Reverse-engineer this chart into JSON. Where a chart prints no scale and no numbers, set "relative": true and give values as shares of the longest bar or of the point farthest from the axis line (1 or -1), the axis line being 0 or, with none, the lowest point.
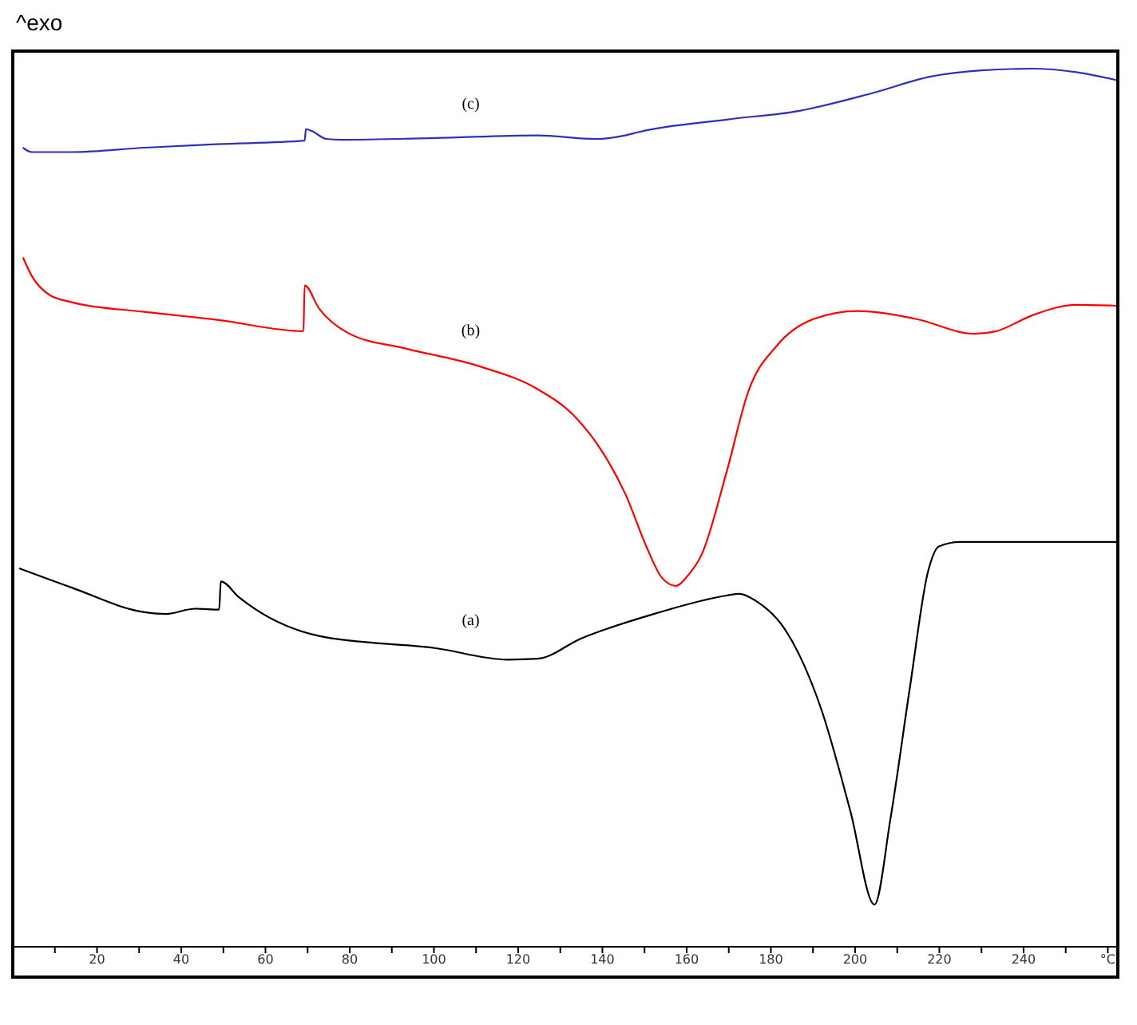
{
  "chart_data": {
    "type": "line",
    "relative": true,
    "ylabel": "^exo",
    "marker": "none",
    "line_style": "solid",
    "xlim": [
      0,
      262
    ],
    "xticks": [
      {
        "value": 10,
        "label": null
      },
      20,
      {
        "value": 30,
        "label": null
      },
      40,
      {
        "value": 50,
        "label": null
      },
      60,
      {
        "value": 70,
        "label": null
      },
      80,
      {
        "value": 90,
        "label": null
      },
      100,
      {
        "value": 110,
        "label": null
      },
      120,
      {
        "value": 130,
        "label": null
      },
      140,
      {
        "value": 150,
        "label": null
      },
      160,
      {
        "value": 170,
        "label": null
      },
      180,
      {
        "value": 190,
        "label": null
      },
      200,
      {
        "value": 210,
        "label": null
      },
      220,
      {
        "value": 230,
        "label": null
      },
      240,
      {
        "value": 250,
        "label": null
      },
      {
        "value": 260,
        "label": "°C"
      }
    ],
    "series": [
      {
        "name": "(a)",
        "color": "#000000",
        "x": [
          1.5,
          14,
          31.3,
          36.4,
          43.3,
          49,
          49.4,
          53.7,
          72.7,
          100.4,
          117.6,
          124.6,
          134.9,
          152.2,
          169.5,
          172.5,
          176.4,
          183.4,
          192,
          198.9,
          204.6,
          208.4,
          213,
          217.3,
          219.9,
          225,
          262
        ],
        "values": [
          0.431,
          0.409,
          0.381,
          0.379,
          0.385,
          0.384,
          0.416,
          0.398,
          0.354,
          0.34,
          0.327,
          0.328,
          0.351,
          0.379,
          0.4,
          0.402,
          0.394,
          0.361,
          0.27,
          0.154,
          0.048,
          0.146,
          0.295,
          0.427,
          0.456,
          0.461,
          0.461
        ]
      },
      {
        "name": "(b)",
        "color": "#ff0000",
        "x": [
          2.4,
          4.5,
          8.8,
          14,
          31.3,
          48.5,
          69,
          69.3,
          72.7,
          79.6,
          93.5,
          110.8,
          124.6,
          133.2,
          140.2,
          145.4,
          150.5,
          154,
          157.4,
          160.5,
          163.5,
          169.5,
          174.6,
          181.5,
          190.2,
          200.6,
          214.4,
          228.3,
          233.5,
          242,
          252.5,
          262
        ],
        "values": [
          0.785,
          0.764,
          0.742,
          0.734,
          0.723,
          0.714,
          0.701,
          0.753,
          0.727,
          0.699,
          0.681,
          0.661,
          0.635,
          0.605,
          0.562,
          0.516,
          0.455,
          0.421,
          0.411,
          0.424,
          0.446,
          0.541,
          0.632,
          0.685,
          0.715,
          0.724,
          0.715,
          0.698,
          0.701,
          0.719,
          0.731,
          0.73
        ]
      },
      {
        "name": "(c)",
        "color": "#2f2fbf",
        "x": [
          2.4,
          4.5,
          14,
          31.3,
          48.5,
          69.3,
          69.6,
          71,
          74.4,
          77.9,
          100.4,
          124.5,
          138.5,
          145.4,
          148.8,
          169.5,
          186.8,
          204,
          218,
          230,
          242,
          252.5,
          262
        ],
        "values": [
          0.91,
          0.905,
          0.905,
          0.91,
          0.914,
          0.918,
          0.931,
          0.929,
          0.92,
          0.919,
          0.921,
          0.924,
          0.92,
          0.924,
          0.928,
          0.942,
          0.952,
          0.972,
          0.991,
          0.998,
          1.0,
          0.996,
          0.987
        ]
      }
    ]
  }
}
